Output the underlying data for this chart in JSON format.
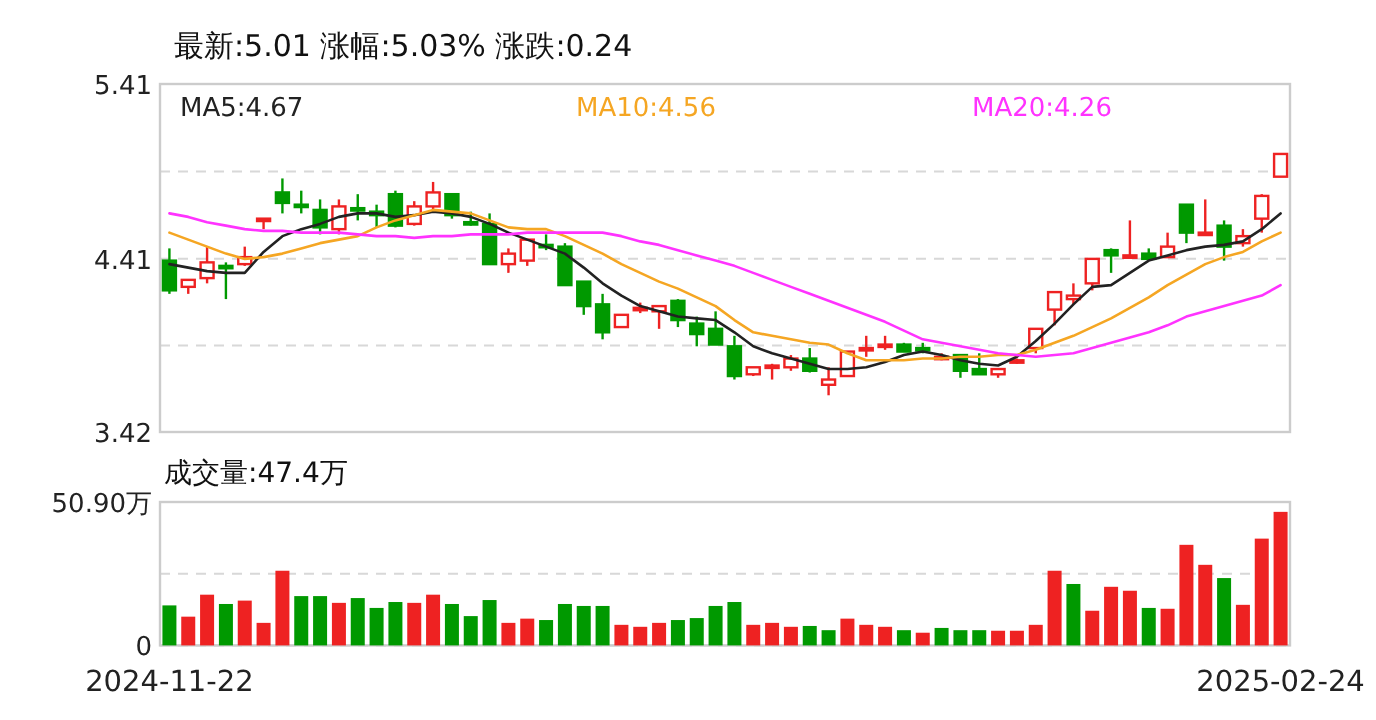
{
  "chart_data": [
    {
      "type": "candlestick",
      "title": "最新:5.01   涨幅:5.03%   涨跌:0.24",
      "categories": [
        null,
        null,
        null,
        null,
        null,
        null,
        null,
        null,
        null,
        null,
        null,
        null,
        null,
        null,
        null,
        null,
        null,
        null,
        null,
        null,
        null,
        null,
        null,
        null,
        null,
        null,
        null,
        null,
        null,
        null,
        null,
        null,
        null,
        null,
        null,
        null,
        null,
        null,
        null,
        null,
        null,
        null,
        null,
        null,
        null,
        null,
        null,
        null,
        null,
        null,
        null,
        null,
        null,
        null,
        null,
        null,
        null,
        null,
        null,
        null
      ],
      "ohlc": [
        [
          4.4,
          4.47,
          4.21,
          4.23
        ],
        [
          4.25,
          4.29,
          4.21,
          4.29
        ],
        [
          4.3,
          4.48,
          4.27,
          4.39
        ],
        [
          4.37,
          4.39,
          4.18,
          4.36
        ],
        [
          4.38,
          4.48,
          4.37,
          4.42
        ],
        [
          4.63,
          4.64,
          4.58,
          4.64
        ],
        [
          4.79,
          4.87,
          4.67,
          4.73
        ],
        [
          4.72,
          4.8,
          4.67,
          4.71
        ],
        [
          4.69,
          4.75,
          4.55,
          4.59
        ],
        [
          4.58,
          4.75,
          4.55,
          4.71
        ],
        [
          4.7,
          4.78,
          4.63,
          4.69
        ],
        [
          4.68,
          4.72,
          4.59,
          4.66
        ],
        [
          4.78,
          4.8,
          4.59,
          4.6
        ],
        [
          4.61,
          4.74,
          4.6,
          4.71
        ],
        [
          4.71,
          4.85,
          4.69,
          4.79
        ],
        [
          4.78,
          4.78,
          4.64,
          4.66
        ],
        [
          4.62,
          4.68,
          4.6,
          4.61
        ],
        [
          4.61,
          4.67,
          4.38,
          4.38
        ],
        [
          4.38,
          4.47,
          4.33,
          4.44
        ],
        [
          4.4,
          4.52,
          4.37,
          4.52
        ],
        [
          4.49,
          4.55,
          4.46,
          4.48
        ],
        [
          4.48,
          4.5,
          4.26,
          4.26
        ],
        [
          4.28,
          4.28,
          4.09,
          4.14
        ],
        [
          4.15,
          4.21,
          3.95,
          3.99
        ],
        [
          4.02,
          4.09,
          4.02,
          4.09
        ],
        [
          4.12,
          4.16,
          4.1,
          4.13
        ],
        [
          4.11,
          4.14,
          4.01,
          4.14
        ],
        [
          4.17,
          4.18,
          4.02,
          4.06
        ],
        [
          4.04,
          4.08,
          3.91,
          3.98
        ],
        [
          4.01,
          4.11,
          3.92,
          3.92
        ],
        [
          3.91,
          3.97,
          3.72,
          3.74
        ],
        [
          3.75,
          3.79,
          3.74,
          3.79
        ],
        [
          3.79,
          3.81,
          3.72,
          3.8
        ],
        [
          3.79,
          3.86,
          3.77,
          3.84
        ],
        [
          3.84,
          3.9,
          3.76,
          3.77
        ],
        [
          3.69,
          3.79,
          3.63,
          3.72
        ],
        [
          3.74,
          3.88,
          3.74,
          3.88
        ],
        [
          3.89,
          3.97,
          3.85,
          3.9
        ],
        [
          3.91,
          3.97,
          3.89,
          3.92
        ],
        [
          3.92,
          3.93,
          3.88,
          3.88
        ],
        [
          3.9,
          3.93,
          3.87,
          3.89
        ],
        [
          3.84,
          3.87,
          3.83,
          3.85
        ],
        [
          3.86,
          3.86,
          3.73,
          3.77
        ],
        [
          3.78,
          3.87,
          3.75,
          3.75
        ],
        [
          3.75,
          3.78,
          3.73,
          3.78
        ],
        [
          3.82,
          3.84,
          3.81,
          3.83
        ],
        [
          3.9,
          4.01,
          3.87,
          4.01
        ],
        [
          4.12,
          4.22,
          4.03,
          4.22
        ],
        [
          4.18,
          4.27,
          4.15,
          4.2
        ],
        [
          4.27,
          4.41,
          4.23,
          4.41
        ],
        [
          4.46,
          4.47,
          4.33,
          4.43
        ],
        [
          4.42,
          4.63,
          4.42,
          4.43
        ],
        [
          4.44,
          4.47,
          4.41,
          4.41
        ],
        [
          4.42,
          4.56,
          4.42,
          4.48
        ],
        [
          4.72,
          4.72,
          4.5,
          4.56
        ],
        [
          4.55,
          4.75,
          4.55,
          4.56
        ],
        [
          4.6,
          4.63,
          4.4,
          4.48
        ],
        [
          4.5,
          4.58,
          4.48,
          4.54
        ],
        [
          4.64,
          4.78,
          4.56,
          4.77
        ],
        [
          4.88,
          5.01,
          4.88,
          5.01
        ]
      ],
      "colors": [
        "#009900",
        "#ee2222",
        "#ee2222",
        "#009900",
        "#ee2222",
        "#ee2222",
        "#009900",
        "#009900",
        "#009900",
        "#ee2222",
        "#009900",
        "#009900",
        "#009900",
        "#ee2222",
        "#ee2222",
        "#009900",
        "#009900",
        "#009900",
        "#ee2222",
        "#ee2222",
        "#009900",
        "#009900",
        "#009900",
        "#009900",
        "#ee2222",
        "#ee2222",
        "#ee2222",
        "#009900",
        "#009900",
        "#009900",
        "#009900",
        "#ee2222",
        "#ee2222",
        "#ee2222",
        "#009900",
        "#ee2222",
        "#ee2222",
        "#ee2222",
        "#ee2222",
        "#009900",
        "#009900",
        "#ee2222",
        "#009900",
        "#009900",
        "#ee2222",
        "#ee2222",
        "#ee2222",
        "#ee2222",
        "#ee2222",
        "#ee2222",
        "#009900",
        "#ee2222",
        "#009900",
        "#ee2222",
        "#009900",
        "#ee2222",
        "#009900",
        "#ee2222",
        "#ee2222",
        "#ee2222"
      ],
      "series": [
        {
          "name": "MA5:4.67",
          "type": "line",
          "color": "#222222",
          "values": [
            4.38,
            4.36,
            4.34,
            4.33,
            4.33,
            4.45,
            4.54,
            4.58,
            4.61,
            4.65,
            4.67,
            4.67,
            4.65,
            4.66,
            4.68,
            4.67,
            4.65,
            4.61,
            4.56,
            4.52,
            4.48,
            4.44,
            4.36,
            4.27,
            4.2,
            4.14,
            4.11,
            4.08,
            4.07,
            4.06,
            3.99,
            3.91,
            3.87,
            3.84,
            3.81,
            3.78,
            3.78,
            3.79,
            3.82,
            3.86,
            3.88,
            3.86,
            3.83,
            3.81,
            3.8,
            3.85,
            3.94,
            4.04,
            4.15,
            4.25,
            4.26,
            4.33,
            4.4,
            4.43,
            4.46,
            4.48,
            4.49,
            4.51,
            4.58,
            4.67
          ]
        },
        {
          "name": "MA10:4.56",
          "type": "line",
          "color": "#f5a623",
          "values": [
            4.56,
            4.52,
            4.48,
            4.44,
            4.41,
            4.42,
            4.44,
            4.47,
            4.5,
            4.52,
            4.54,
            4.59,
            4.63,
            4.66,
            4.69,
            4.68,
            4.67,
            4.63,
            4.59,
            4.58,
            4.58,
            4.54,
            4.49,
            4.44,
            4.38,
            4.33,
            4.28,
            4.24,
            4.19,
            4.14,
            4.06,
            3.99,
            3.97,
            3.95,
            3.93,
            3.92,
            3.87,
            3.83,
            3.83,
            3.83,
            3.84,
            3.84,
            3.85,
            3.85,
            3.86,
            3.86,
            3.89,
            3.93,
            3.97,
            4.02,
            4.07,
            4.13,
            4.19,
            4.26,
            4.32,
            4.38,
            4.42,
            4.45,
            4.51,
            4.56
          ]
        },
        {
          "name": "MA20:4.26",
          "type": "line",
          "color": "#ff33ff",
          "values": [
            4.67,
            4.65,
            4.62,
            4.6,
            4.58,
            4.57,
            4.57,
            4.56,
            4.56,
            4.56,
            4.55,
            4.54,
            4.54,
            4.53,
            4.54,
            4.54,
            4.55,
            4.55,
            4.55,
            4.56,
            4.56,
            4.56,
            4.56,
            4.56,
            4.54,
            4.51,
            4.49,
            4.46,
            4.43,
            4.4,
            4.37,
            4.33,
            4.29,
            4.25,
            4.21,
            4.17,
            4.13,
            4.09,
            4.05,
            4.0,
            3.95,
            3.93,
            3.91,
            3.89,
            3.87,
            3.86,
            3.85,
            3.86,
            3.87,
            3.9,
            3.93,
            3.96,
            3.99,
            4.03,
            4.08,
            4.11,
            4.14,
            4.17,
            4.2,
            4.26
          ]
        }
      ],
      "ylim": [
        3.42,
        5.41
      ],
      "yticks": [
        3.42,
        {
          "value": 3.915,
          "label": null
        },
        4.41,
        {
          "value": 4.91,
          "label": null
        },
        5.41
      ],
      "grid": "y",
      "legend": "top",
      "tick_labels": "y"
    },
    {
      "type": "bar",
      "title": "成交量:47.4万",
      "categories": [
        "2024-11-22",
        null,
        null,
        null,
        null,
        null,
        null,
        null,
        null,
        null,
        null,
        null,
        null,
        null,
        null,
        null,
        null,
        null,
        null,
        null,
        null,
        null,
        null,
        null,
        null,
        null,
        null,
        null,
        null,
        null,
        null,
        null,
        null,
        null,
        null,
        null,
        null,
        null,
        null,
        null,
        null,
        null,
        null,
        null,
        null,
        null,
        null,
        null,
        null,
        null,
        null,
        null,
        null,
        null,
        null,
        null,
        null,
        null,
        null,
        "2025-02-24"
      ],
      "values": [
        14.2,
        10.2,
        18.0,
        14.7,
        15.9,
        8.0,
        26.5,
        17.5,
        17.5,
        15.1,
        16.8,
        13.3,
        15.4,
        15.1,
        18.0,
        14.7,
        10.4,
        16.1,
        8.0,
        9.5,
        9.0,
        14.7,
        14.0,
        14.0,
        7.3,
        6.6,
        8.0,
        9.0,
        9.7,
        14.0,
        15.4,
        7.3,
        8.0,
        6.6,
        6.9,
        5.4,
        9.5,
        7.3,
        6.6,
        5.4,
        4.5,
        6.2,
        5.4,
        5.4,
        5.2,
        5.2,
        7.3,
        26.5,
        21.8,
        12.3,
        20.8,
        19.4,
        13.3,
        13.0,
        35.7,
        28.6,
        23.9,
        14.4,
        37.9,
        47.4
      ],
      "colors": [
        "#009900",
        "#ee2222",
        "#ee2222",
        "#009900",
        "#ee2222",
        "#ee2222",
        "#ee2222",
        "#009900",
        "#009900",
        "#ee2222",
        "#009900",
        "#009900",
        "#009900",
        "#ee2222",
        "#ee2222",
        "#009900",
        "#009900",
        "#009900",
        "#ee2222",
        "#ee2222",
        "#009900",
        "#009900",
        "#009900",
        "#009900",
        "#ee2222",
        "#ee2222",
        "#ee2222",
        "#009900",
        "#009900",
        "#009900",
        "#009900",
        "#ee2222",
        "#ee2222",
        "#ee2222",
        "#009900",
        "#009900",
        "#ee2222",
        "#ee2222",
        "#ee2222",
        "#009900",
        "#ee2222",
        "#009900",
        "#009900",
        "#009900",
        "#ee2222",
        "#ee2222",
        "#ee2222",
        "#ee2222",
        "#009900",
        "#ee2222",
        "#ee2222",
        "#ee2222",
        "#009900",
        "#ee2222",
        "#ee2222",
        "#ee2222",
        "#009900",
        "#ee2222",
        "#ee2222",
        "#ee2222"
      ],
      "ylim": [
        0,
        50.9
      ],
      "yticks": [
        0,
        {
          "value": 25.45,
          "label": null
        },
        {
          "value": 50.9,
          "label": "50.90万"
        }
      ],
      "grid": "y"
    }
  ]
}
